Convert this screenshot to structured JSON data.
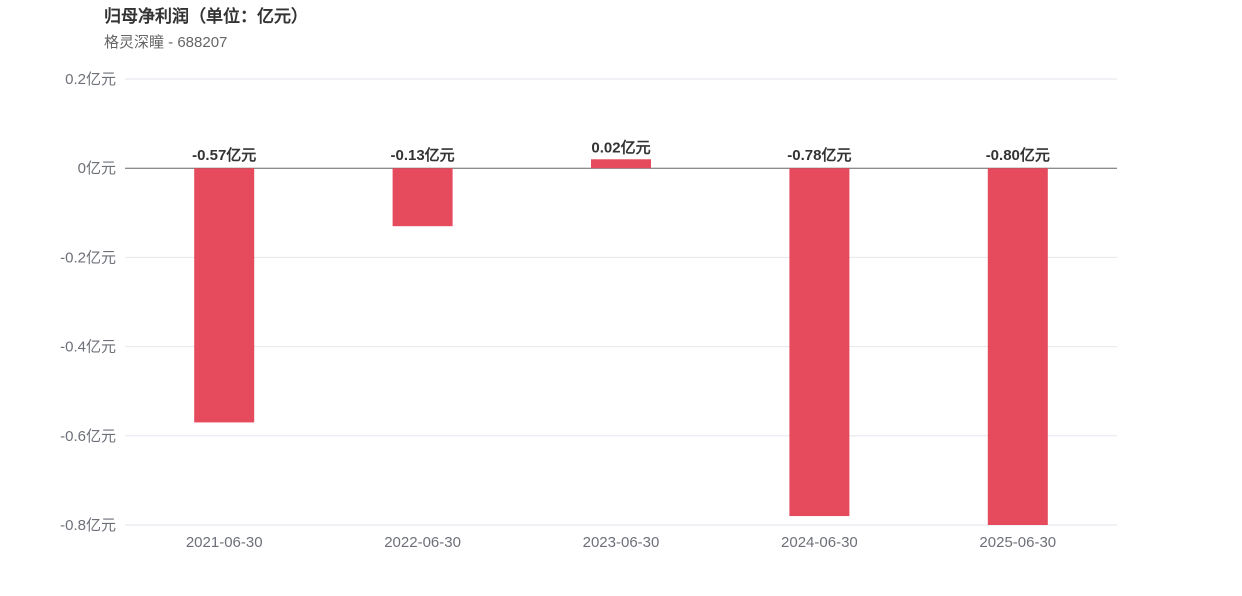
{
  "chart_data": {
    "type": "bar",
    "title": "归母净利润（单位：亿元）",
    "subtitle": "格灵深瞳 - 688207",
    "categories": [
      "2021-06-30",
      "2022-06-30",
      "2023-06-30",
      "2024-06-30",
      "2025-06-30"
    ],
    "values": [
      -0.57,
      -0.13,
      0.02,
      -0.78,
      -0.8
    ],
    "data_labels": [
      "-0.57亿元",
      "-0.13亿元",
      "0.02亿元",
      "-0.78亿元",
      "-0.80亿元"
    ],
    "yticks": [
      0.2,
      0,
      -0.2,
      -0.4,
      -0.6,
      -0.8
    ],
    "ytick_labels": [
      "0.2亿元",
      "0亿元",
      "-0.2亿元",
      "-0.4亿元",
      "-0.6亿元",
      "-0.8亿元"
    ],
    "ylim": [
      -0.8,
      0.2
    ],
    "grid": true,
    "bar_color": "#e64b5d"
  }
}
